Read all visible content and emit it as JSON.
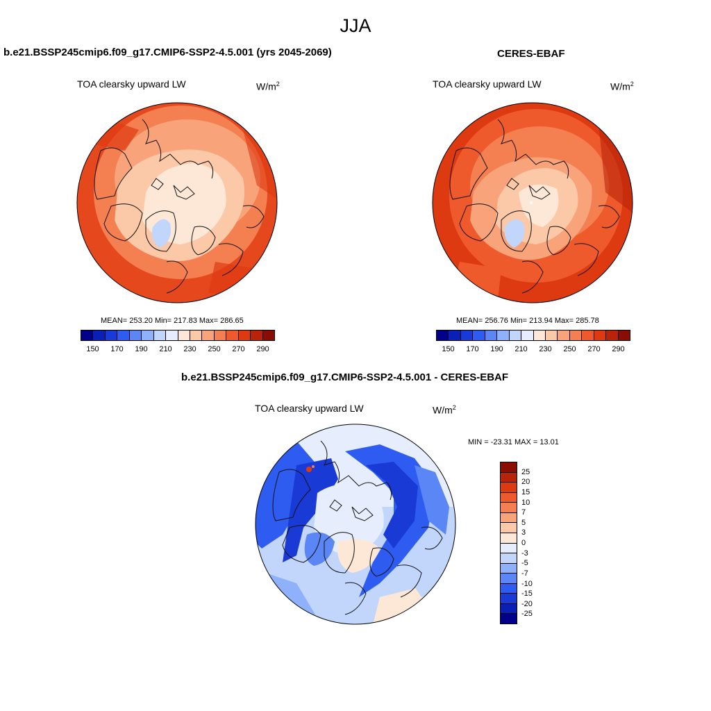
{
  "season": "JJA",
  "panels": [
    {
      "title": "b.e21.BSSP245cmip6.f09_g17.CMIP6-SSP2-4.5.001 (yrs 2045-2069)",
      "variable": "TOA clearsky upward LW",
      "units_base": "W/m",
      "units_exp": "2",
      "stats": "MEAN= 253.20  Min= 217.83  Max= 286.65",
      "mean": 253.2,
      "min": 217.83,
      "max": 286.65
    },
    {
      "title": "CERES-EBAF",
      "variable": "TOA clearsky upward LW",
      "units_base": "W/m",
      "units_exp": "2",
      "stats": "MEAN= 256.76  Min= 213.94  Max= 285.78",
      "mean": 256.76,
      "min": 213.94,
      "max": 285.78
    },
    {
      "title": "b.e21.BSSP245cmip6.f09_g17.CMIP6-SSP2-4.5.001 - CERES-EBAF",
      "variable": "TOA clearsky upward LW",
      "units_base": "W/m",
      "units_exp": "2",
      "stats": "MIN = -23.31 MAX =  13.01",
      "min": -23.31,
      "max": 13.01
    }
  ],
  "abs_colorbar": {
    "colors": [
      "#00008b",
      "#0a1fb5",
      "#1a3ad6",
      "#2f5cf0",
      "#5b86f5",
      "#8fb0fa",
      "#c2d6fc",
      "#e6eefd",
      "#fde8d8",
      "#fbc8a8",
      "#f8a37a",
      "#f47f50",
      "#ef5a2c",
      "#de3a12",
      "#b8230a",
      "#8a0d02"
    ],
    "labels": [
      "150",
      "170",
      "190",
      "210",
      "230",
      "250",
      "270",
      "290"
    ]
  },
  "diff_colorbar": {
    "colors": [
      "#8a0d02",
      "#b8230a",
      "#de3a12",
      "#ef5a2c",
      "#f47f50",
      "#f8a37a",
      "#fbc8a8",
      "#fde8d8",
      "#e6eefd",
      "#c2d6fc",
      "#8fb0fa",
      "#5b86f5",
      "#2f5cf0",
      "#1a3ad6",
      "#0a1fb5",
      "#00008b"
    ],
    "labels": [
      "25",
      "20",
      "15",
      "10",
      "7",
      "5",
      "3",
      "0",
      "-3",
      "-5",
      "-7",
      "-10",
      "-15",
      "-20",
      "-25"
    ]
  }
}
